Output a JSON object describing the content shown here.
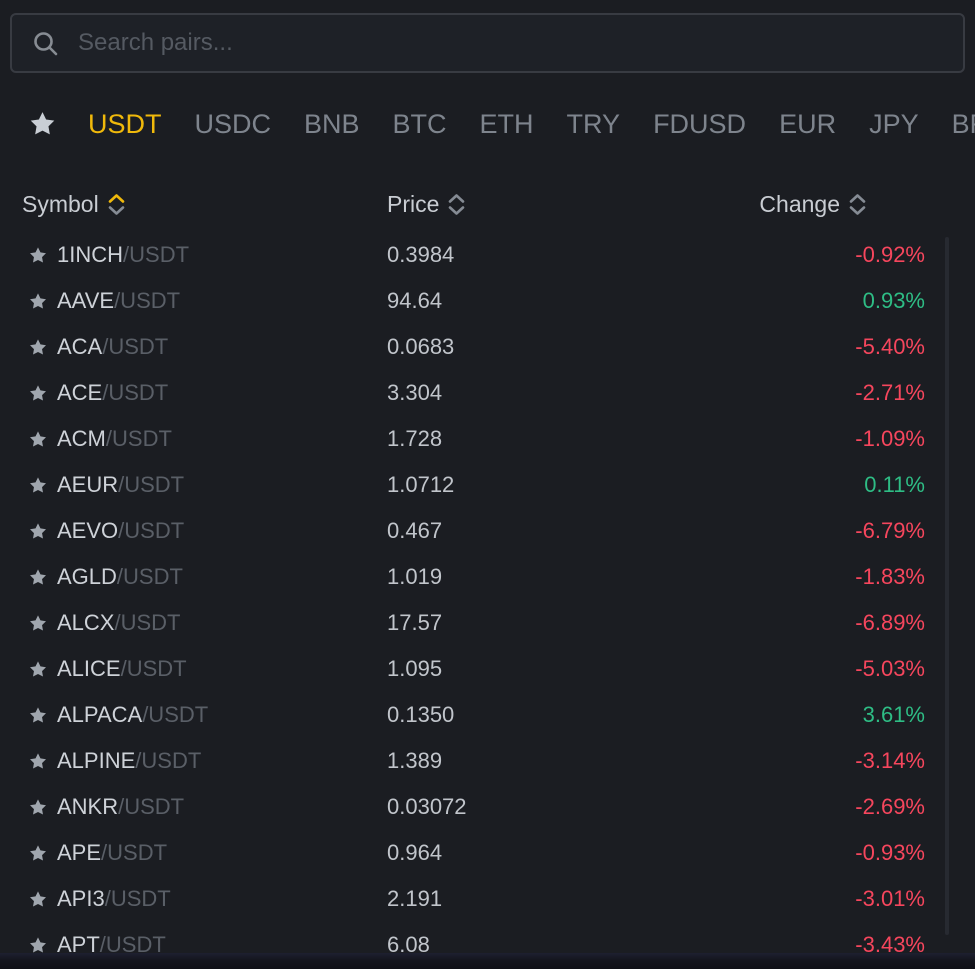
{
  "colors": {
    "accent": "#f0b90b",
    "up": "#2ebd85",
    "down": "#f6465d"
  },
  "search": {
    "placeholder": "Search pairs..."
  },
  "tabs": {
    "favorites_icon": "star-icon",
    "items": [
      {
        "label": "USDT",
        "active": true
      },
      {
        "label": "USDC",
        "active": false
      },
      {
        "label": "BNB",
        "active": false
      },
      {
        "label": "BTC",
        "active": false
      },
      {
        "label": "ETH",
        "active": false
      },
      {
        "label": "TRY",
        "active": false
      },
      {
        "label": "FDUSD",
        "active": false
      },
      {
        "label": "EUR",
        "active": false
      },
      {
        "label": "JPY",
        "active": false
      },
      {
        "label": "BRL",
        "active": false
      }
    ]
  },
  "table": {
    "headers": {
      "symbol": "Symbol",
      "price": "Price",
      "change": "Change"
    },
    "sort": {
      "column": "symbol",
      "direction": "asc"
    },
    "rows": [
      {
        "base": "1INCH",
        "quote": "/USDT",
        "price": "0.3984",
        "change": "-0.92%",
        "direction": "down"
      },
      {
        "base": "AAVE",
        "quote": "/USDT",
        "price": "94.64",
        "change": "0.93%",
        "direction": "up"
      },
      {
        "base": "ACA",
        "quote": "/USDT",
        "price": "0.0683",
        "change": "-5.40%",
        "direction": "down"
      },
      {
        "base": "ACE",
        "quote": "/USDT",
        "price": "3.304",
        "change": "-2.71%",
        "direction": "down"
      },
      {
        "base": "ACM",
        "quote": "/USDT",
        "price": "1.728",
        "change": "-1.09%",
        "direction": "down"
      },
      {
        "base": "AEUR",
        "quote": "/USDT",
        "price": "1.0712",
        "change": "0.11%",
        "direction": "up"
      },
      {
        "base": "AEVO",
        "quote": "/USDT",
        "price": "0.467",
        "change": "-6.79%",
        "direction": "down"
      },
      {
        "base": "AGLD",
        "quote": "/USDT",
        "price": "1.019",
        "change": "-1.83%",
        "direction": "down"
      },
      {
        "base": "ALCX",
        "quote": "/USDT",
        "price": "17.57",
        "change": "-6.89%",
        "direction": "down"
      },
      {
        "base": "ALICE",
        "quote": "/USDT",
        "price": "1.095",
        "change": "-5.03%",
        "direction": "down"
      },
      {
        "base": "ALPACA",
        "quote": "/USDT",
        "price": "0.1350",
        "change": "3.61%",
        "direction": "up"
      },
      {
        "base": "ALPINE",
        "quote": "/USDT",
        "price": "1.389",
        "change": "-3.14%",
        "direction": "down"
      },
      {
        "base": "ANKR",
        "quote": "/USDT",
        "price": "0.03072",
        "change": "-2.69%",
        "direction": "down"
      },
      {
        "base": "APE",
        "quote": "/USDT",
        "price": "0.964",
        "change": "-0.93%",
        "direction": "down"
      },
      {
        "base": "API3",
        "quote": "/USDT",
        "price": "2.191",
        "change": "-3.01%",
        "direction": "down"
      },
      {
        "base": "APT",
        "quote": "/USDT",
        "price": "6.08",
        "change": "-3.43%",
        "direction": "down"
      }
    ]
  }
}
